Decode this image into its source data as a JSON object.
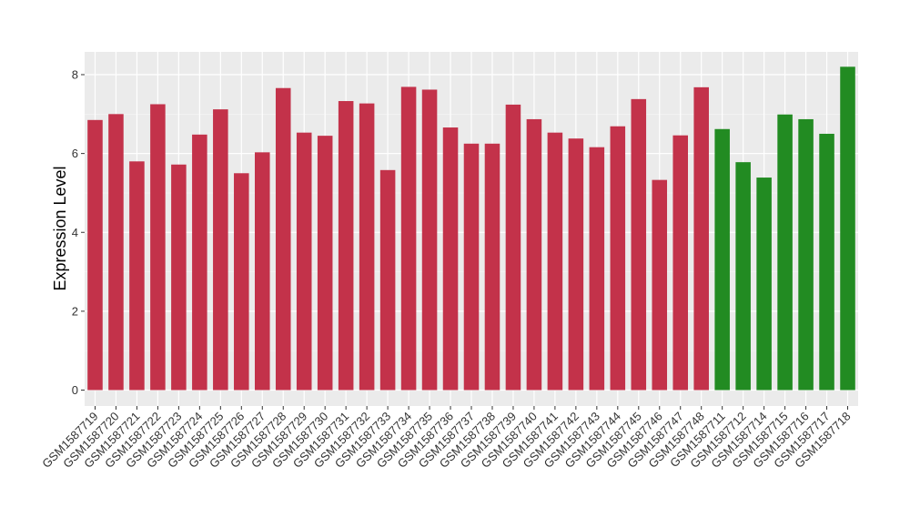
{
  "chart_data": {
    "type": "bar",
    "ylabel": "Expression Level",
    "xlabel": "",
    "ylim": [
      0,
      8.5
    ],
    "yticks": [
      0,
      2,
      4,
      6,
      8
    ],
    "grid": true,
    "background": "#ebebeb",
    "categories": [
      "GSM1587719",
      "GSM1587720",
      "GSM1587721",
      "GSM1587722",
      "GSM1587723",
      "GSM1587724",
      "GSM1587725",
      "GSM1587726",
      "GSM1587727",
      "GSM1587728",
      "GSM1587729",
      "GSM1587730",
      "GSM1587731",
      "GSM1587732",
      "GSM1587733",
      "GSM1587734",
      "GSM1587735",
      "GSM1587736",
      "GSM1587737",
      "GSM1587738",
      "GSM1587739",
      "GSM1587740",
      "GSM1587741",
      "GSM1587742",
      "GSM1587743",
      "GSM1587744",
      "GSM1587745",
      "GSM1587746",
      "GSM1587747",
      "GSM1587748",
      "GSM1587711",
      "GSM1587712",
      "GSM1587714",
      "GSM1587715",
      "GSM1587716",
      "GSM1587717",
      "GSM1587718"
    ],
    "values": [
      6.85,
      7.0,
      5.8,
      7.25,
      5.72,
      6.48,
      7.12,
      5.5,
      6.03,
      7.66,
      6.53,
      6.45,
      7.33,
      7.27,
      5.58,
      7.69,
      7.62,
      6.66,
      6.25,
      6.25,
      7.24,
      6.87,
      6.53,
      6.38,
      6.16,
      6.69,
      7.38,
      5.33,
      6.46,
      7.68,
      6.62,
      5.78,
      5.39,
      6.99,
      6.87,
      6.5,
      8.2
    ],
    "colors": [
      "#c3324a",
      "#c3324a",
      "#c3324a",
      "#c3324a",
      "#c3324a",
      "#c3324a",
      "#c3324a",
      "#c3324a",
      "#c3324a",
      "#c3324a",
      "#c3324a",
      "#c3324a",
      "#c3324a",
      "#c3324a",
      "#c3324a",
      "#c3324a",
      "#c3324a",
      "#c3324a",
      "#c3324a",
      "#c3324a",
      "#c3324a",
      "#c3324a",
      "#c3324a",
      "#c3324a",
      "#c3324a",
      "#c3324a",
      "#c3324a",
      "#c3324a",
      "#c3324a",
      "#c3324a",
      "#228b22",
      "#228b22",
      "#228b22",
      "#228b22",
      "#228b22",
      "#228b22",
      "#228b22"
    ]
  }
}
